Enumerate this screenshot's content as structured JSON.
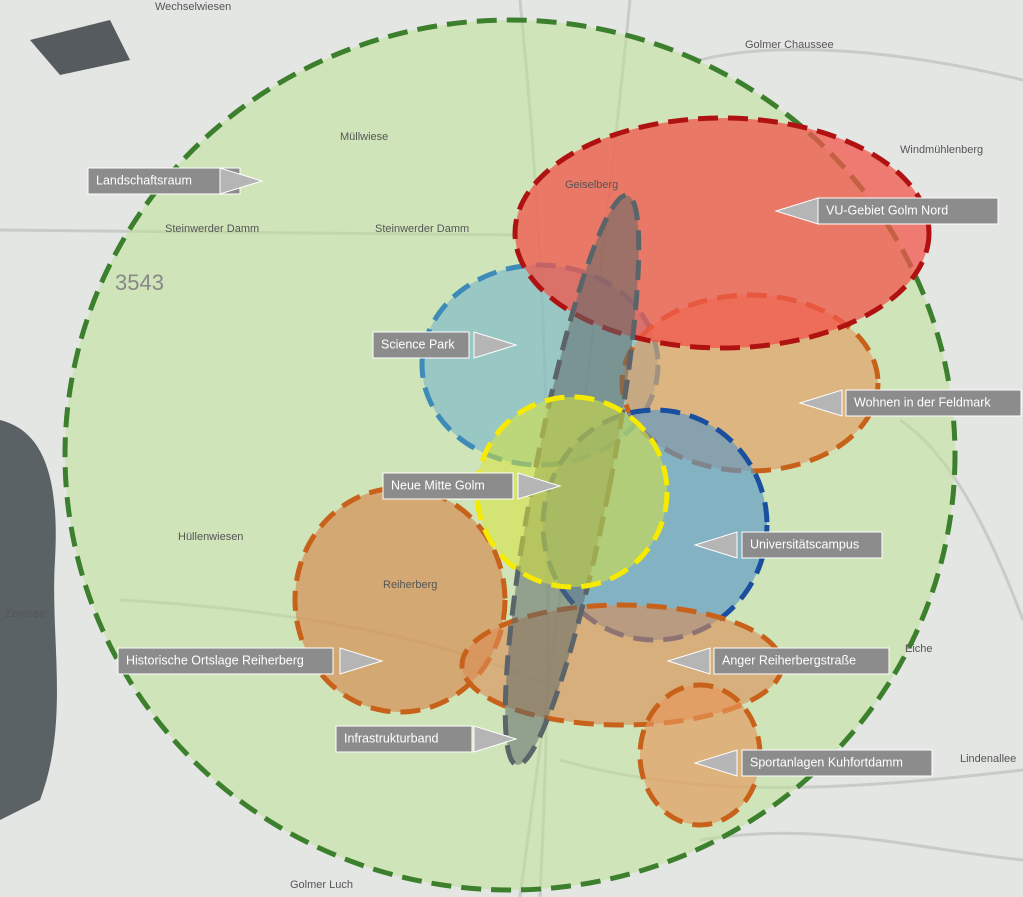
{
  "zones": [
    {
      "label": "Landschaftsraum"
    },
    {
      "label": "VU-Gebiet Golm Nord"
    },
    {
      "label": "Science Park"
    },
    {
      "label": "Wohnen in der Feldmark"
    },
    {
      "label": "Neue Mitte Golm"
    },
    {
      "label": "Universitätscampus"
    },
    {
      "label": "Historische Ortslage Reiherberg"
    },
    {
      "label": "Anger Reiherbergstraße"
    },
    {
      "label": "Infrastrukturband"
    },
    {
      "label": "Sportanlagen Kuhfortdamm"
    }
  ],
  "place_names": [
    "Müllwiese",
    "Steinwerder Damm",
    "Steinwerder Damm",
    "3543",
    "Hüllenwiesen",
    "Reiherberg",
    "Zernsee",
    "Golmer Luch",
    "Windmühlenberg",
    "Geiselberg",
    "Wechselwiesen",
    "Golmer Chaussee",
    "Lindenallee",
    "Eiche"
  ]
}
